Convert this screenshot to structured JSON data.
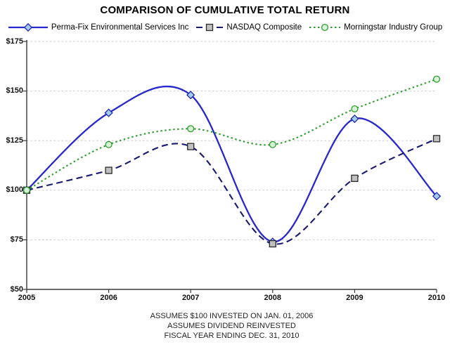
{
  "chart_data": {
    "type": "line",
    "title": "COMPARISON OF CUMULATIVE TOTAL RETURN",
    "x": [
      2005,
      2006,
      2007,
      2008,
      2009,
      2010
    ],
    "x_tick_labels": [
      "2005",
      "2006",
      "2007",
      "2008",
      "2009",
      "2010"
    ],
    "ylim": [
      50,
      175
    ],
    "y_ticks": [
      50,
      75,
      100,
      125,
      150,
      175
    ],
    "y_tick_labels": [
      "$50",
      "$75",
      "$100",
      "$125",
      "$150",
      "$175"
    ],
    "grid": "horizontal dashed gridlines at each $25 level",
    "legend_position": "top",
    "axis_color": "#3a3a3a",
    "grid_color": "#c9c9c9",
    "series": [
      {
        "name": "Perma-Fix Environmental Services Inc",
        "values": [
          100,
          139,
          148,
          74,
          136,
          97
        ],
        "color": "#2727cd",
        "line_style": "solid",
        "marker": "diamond",
        "marker_fill": "#a3cdf0",
        "marker_edge": "#2028b0"
      },
      {
        "name": "NASDAQ Composite",
        "values": [
          100,
          110,
          122,
          73,
          106,
          126
        ],
        "color": "#191970",
        "line_style": "dashed",
        "marker": "square",
        "marker_fill": "#c0c0c0",
        "marker_edge": "#2a2a2a"
      },
      {
        "name": "Morningstar Industry Group",
        "values": [
          100,
          123,
          131,
          123,
          141,
          156
        ],
        "color": "#2f9e2f",
        "line_style": "dotted",
        "marker": "circle",
        "marker_fill": "#d6f5d6",
        "marker_edge": "#2f9e2f"
      }
    ],
    "footnotes": [
      "ASSUMES $100 INVESTED ON JAN. 01, 2006",
      "ASSUMES DIVIDEND REINVESTED",
      "FISCAL YEAR ENDING DEC. 31, 2010"
    ]
  }
}
